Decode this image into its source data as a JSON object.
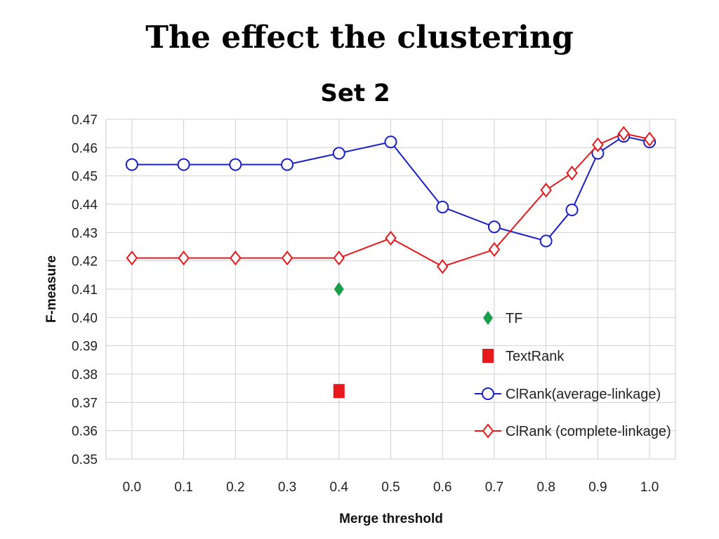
{
  "slide": {
    "title": "The effect the clustering"
  },
  "chart_data": {
    "type": "line",
    "title": "Set 2",
    "xlabel": "Merge threshold",
    "ylabel": "F-measure",
    "xlim": [
      -0.05,
      1.05
    ],
    "ylim": [
      0.35,
      0.47
    ],
    "x_ticks": [
      {
        "value": 0.0,
        "label": "0.0"
      },
      {
        "value": 0.1,
        "label": "0.1"
      },
      {
        "value": 0.2,
        "label": "0.2"
      },
      {
        "value": 0.3,
        "label": "0.3"
      },
      {
        "value": 0.4,
        "label": "0.4"
      },
      {
        "value": 0.5,
        "label": "0.5"
      },
      {
        "value": 0.6,
        "label": "0.6"
      },
      {
        "value": 0.7,
        "label": "0.7"
      },
      {
        "value": 0.8,
        "label": "0.8"
      },
      {
        "value": 0.9,
        "label": "0.9"
      },
      {
        "value": 1.0,
        "label": "1.0"
      }
    ],
    "y_ticks": [
      "0.35",
      "0.36",
      "0.37",
      "0.38",
      "0.39",
      "0.40",
      "0.41",
      "0.42",
      "0.43",
      "0.44",
      "0.45",
      "0.46",
      "0.47"
    ],
    "grid": true,
    "legend_position": "bottom-right",
    "series": [
      {
        "name": "TF",
        "kind": "points",
        "marker": "diamond-filled",
        "color": "#1a9e4a",
        "x": [
          0.4
        ],
        "y": [
          0.41
        ]
      },
      {
        "name": "TextRank",
        "kind": "points",
        "marker": "square-filled",
        "color": "#e8191c",
        "x": [
          0.4
        ],
        "y": [
          0.374
        ]
      },
      {
        "name": "ClRank(average-linkage)",
        "kind": "line",
        "marker": "circle-open",
        "color": "#1a20c8",
        "x": [
          0.0,
          0.1,
          0.2,
          0.3,
          0.4,
          0.5,
          0.6,
          0.7,
          0.8,
          0.85,
          0.9,
          0.95,
          1.0
        ],
        "y": [
          0.454,
          0.454,
          0.454,
          0.454,
          0.458,
          0.462,
          0.439,
          0.432,
          0.427,
          0.438,
          0.458,
          0.464,
          0.462
        ]
      },
      {
        "name": "ClRank (complete-linkage)",
        "kind": "line",
        "marker": "diamond-open",
        "color": "#e8191c",
        "x": [
          0.0,
          0.1,
          0.2,
          0.3,
          0.4,
          0.5,
          0.6,
          0.7,
          0.8,
          0.85,
          0.9,
          0.95,
          1.0
        ],
        "y": [
          0.421,
          0.421,
          0.421,
          0.421,
          0.421,
          0.428,
          0.418,
          0.424,
          0.445,
          0.451,
          0.461,
          0.465,
          0.463
        ]
      }
    ]
  }
}
